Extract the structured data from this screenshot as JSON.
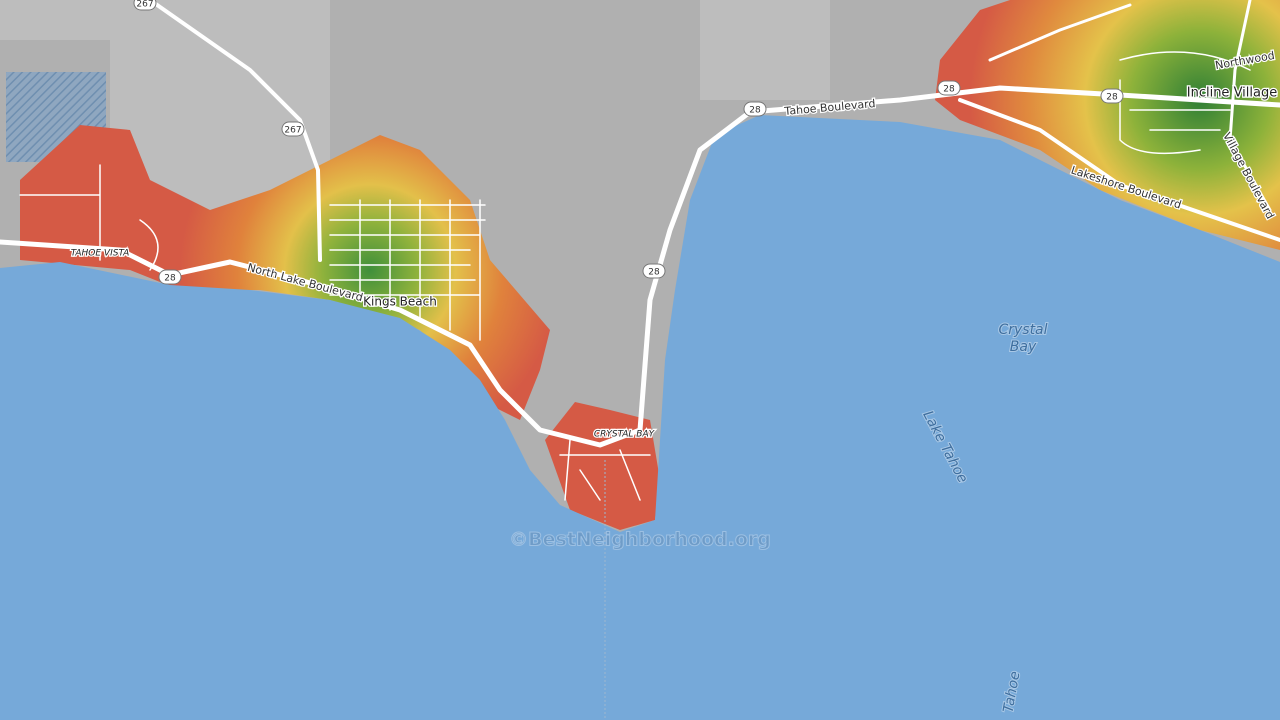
{
  "map": {
    "shields": [
      "267",
      "267",
      "28",
      "28",
      "28",
      "28",
      "28"
    ],
    "place_labels": [
      "TAHOE VISTA",
      "Kings Beach",
      "CRYSTAL BAY",
      "Incline Village"
    ],
    "road_labels": [
      "North Lake Boulevard",
      "Tahoe Boulevard",
      "Lakeshore Boulevard",
      "Village Boulevard",
      "Northwood"
    ],
    "water_labels": [
      "Crystal",
      "Bay",
      "Lake Tahoe",
      "Tahoe"
    ],
    "watermark": "©BestNeighborhood.org"
  }
}
